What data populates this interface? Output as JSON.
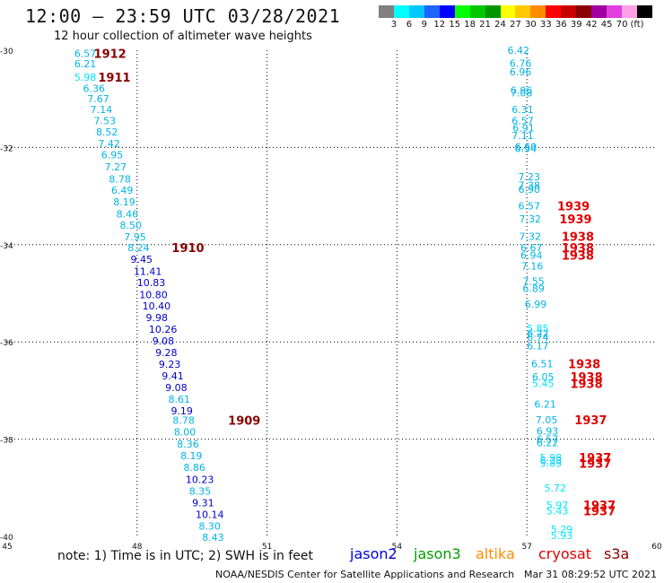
{
  "header": {
    "title": "12:00 – 23:59 UTC 03/28/2021",
    "subtitle": "12 hour collection of altimeter wave heights"
  },
  "colorbar": {
    "colors": [
      "#808080",
      "#00ffff",
      "#00c8ff",
      "#1e64ff",
      "#0000ff",
      "#00ff00",
      "#00c800",
      "#009600",
      "#ffff00",
      "#ffc800",
      "#ff8c00",
      "#ff0000",
      "#c80000",
      "#8b0000",
      "#a000a0",
      "#e040e0",
      "#ffa0e6",
      "#000000"
    ],
    "labels": [
      "3",
      "6",
      "9",
      "12",
      "15",
      "18",
      "21",
      "24",
      "27",
      "30",
      "33",
      "36",
      "39",
      "42",
      "45",
      "70",
      "(ft)"
    ]
  },
  "axes": {
    "lat_ticks": [
      "-30",
      "-32",
      "-34",
      "-36",
      "-38",
      "-40"
    ],
    "lon_ticks": [
      "45",
      "48",
      "51",
      "54",
      "57",
      "60"
    ]
  },
  "tracks": {
    "left": [
      {
        "lat": -30.06,
        "lon": 46.55,
        "v": "6.57",
        "c": "#00b4e6"
      },
      {
        "lat": -30.28,
        "lon": 46.55,
        "v": "6.21",
        "c": "#00b4e6"
      },
      {
        "lat": -30.55,
        "lon": 46.55,
        "v": "5.98",
        "c": "#00e6ff"
      },
      {
        "lat": -30.78,
        "lon": 46.75,
        "v": "6.36",
        "c": "#00b4e6"
      },
      {
        "lat": -31.0,
        "lon": 46.85,
        "v": "7.67",
        "c": "#00b4e6"
      },
      {
        "lat": -31.22,
        "lon": 46.92,
        "v": "7.14",
        "c": "#00b4e6"
      },
      {
        "lat": -31.45,
        "lon": 47.0,
        "v": "7.53",
        "c": "#00b4e6"
      },
      {
        "lat": -31.68,
        "lon": 47.05,
        "v": "8.52",
        "c": "#00b4e6"
      },
      {
        "lat": -31.92,
        "lon": 47.1,
        "v": "7.42",
        "c": "#00b4e6"
      },
      {
        "lat": -32.15,
        "lon": 47.17,
        "v": "6.95",
        "c": "#00b4e6"
      },
      {
        "lat": -32.4,
        "lon": 47.25,
        "v": "7.27",
        "c": "#00b4e6"
      },
      {
        "lat": -32.65,
        "lon": 47.35,
        "v": "8.78",
        "c": "#00b4e6"
      },
      {
        "lat": -32.88,
        "lon": 47.4,
        "v": "6.49",
        "c": "#00b4e6"
      },
      {
        "lat": -33.12,
        "lon": 47.45,
        "v": "8.19",
        "c": "#00b4e6"
      },
      {
        "lat": -33.37,
        "lon": 47.52,
        "v": "8.46",
        "c": "#00b4e6"
      },
      {
        "lat": -33.6,
        "lon": 47.6,
        "v": "8.50",
        "c": "#00b4e6"
      },
      {
        "lat": -33.84,
        "lon": 47.7,
        "v": "7.95",
        "c": "#00b4e6"
      },
      {
        "lat": -34.06,
        "lon": 47.78,
        "v": "8.24",
        "c": "#00b4e6"
      },
      {
        "lat": -34.3,
        "lon": 47.85,
        "v": "9.45",
        "c": "#0000c8"
      },
      {
        "lat": -34.55,
        "lon": 47.92,
        "v": "11.41",
        "c": "#0000c8"
      },
      {
        "lat": -34.78,
        "lon": 48.0,
        "v": "10.83",
        "c": "#0000c8"
      },
      {
        "lat": -35.03,
        "lon": 48.05,
        "v": "10.80",
        "c": "#0000c8"
      },
      {
        "lat": -35.26,
        "lon": 48.12,
        "v": "10.40",
        "c": "#0000c8"
      },
      {
        "lat": -35.5,
        "lon": 48.2,
        "v": "9.98",
        "c": "#0000c8"
      },
      {
        "lat": -35.74,
        "lon": 48.27,
        "v": "10.26",
        "c": "#0000c8"
      },
      {
        "lat": -35.98,
        "lon": 48.35,
        "v": "9.08",
        "c": "#0000c8"
      },
      {
        "lat": -36.22,
        "lon": 48.42,
        "v": "9.28",
        "c": "#0000c8"
      },
      {
        "lat": -36.46,
        "lon": 48.5,
        "v": "9.23",
        "c": "#0000c8"
      },
      {
        "lat": -36.7,
        "lon": 48.57,
        "v": "9.41",
        "c": "#0000c8"
      },
      {
        "lat": -36.94,
        "lon": 48.65,
        "v": "9.08",
        "c": "#0000c8"
      },
      {
        "lat": -37.18,
        "lon": 48.72,
        "v": "8.61",
        "c": "#00b4e6"
      },
      {
        "lat": -37.42,
        "lon": 48.78,
        "v": "9.19",
        "c": "#0000c8"
      },
      {
        "lat": -37.61,
        "lon": 48.82,
        "v": "8.78",
        "c": "#00b4e6"
      },
      {
        "lat": -37.85,
        "lon": 48.85,
        "v": "8.00",
        "c": "#00b4e6"
      },
      {
        "lat": -38.1,
        "lon": 48.92,
        "v": "8.36",
        "c": "#00b4e6"
      },
      {
        "lat": -38.34,
        "lon": 49.0,
        "v": "8.19",
        "c": "#00b4e6"
      },
      {
        "lat": -38.58,
        "lon": 49.07,
        "v": "8.86",
        "c": "#00b4e6"
      },
      {
        "lat": -38.83,
        "lon": 49.12,
        "v": "10.23",
        "c": "#0000c8"
      },
      {
        "lat": -39.07,
        "lon": 49.2,
        "v": "8.35",
        "c": "#00b4e6"
      },
      {
        "lat": -39.31,
        "lon": 49.27,
        "v": "9.31",
        "c": "#0000c8"
      },
      {
        "lat": -39.55,
        "lon": 49.35,
        "v": "10.14",
        "c": "#0000c8"
      },
      {
        "lat": -39.79,
        "lon": 49.42,
        "v": "8.30",
        "c": "#00b4e6"
      },
      {
        "lat": -40.02,
        "lon": 49.5,
        "v": "8.43",
        "c": "#00b4e6"
      }
    ],
    "right": [
      {
        "lat": -30.0,
        "lon": 56.55,
        "v": "6.42",
        "c": "#00b4e6"
      },
      {
        "lat": -30.27,
        "lon": 56.6,
        "v": "6.76",
        "c": "#00b4e6"
      },
      {
        "lat": -30.44,
        "lon": 56.6,
        "v": "6.96",
        "c": "#00b4e6"
      },
      {
        "lat": -30.82,
        "lon": 56.62,
        "v": "6.96",
        "c": "#00b4e6"
      },
      {
        "lat": -30.88,
        "lon": 56.62,
        "v": "7.08",
        "c": "#00b4e6"
      },
      {
        "lat": -31.22,
        "lon": 56.65,
        "v": "6.31",
        "c": "#00b4e6"
      },
      {
        "lat": -31.45,
        "lon": 56.65,
        "v": "6.57",
        "c": "#00b4e6"
      },
      {
        "lat": -31.6,
        "lon": 56.67,
        "v": "6.91",
        "c": "#00b4e6"
      },
      {
        "lat": -31.75,
        "lon": 56.65,
        "v": "7.11",
        "c": "#00b4e6"
      },
      {
        "lat": -31.98,
        "lon": 56.72,
        "v": "6.60",
        "c": "#00b4e6"
      },
      {
        "lat": -32.02,
        "lon": 56.72,
        "v": "6.54",
        "c": "#00b4e6"
      },
      {
        "lat": -32.6,
        "lon": 56.8,
        "v": "7.23",
        "c": "#00b4e6"
      },
      {
        "lat": -32.78,
        "lon": 56.8,
        "v": "7.38",
        "c": "#00b4e6"
      },
      {
        "lat": -32.86,
        "lon": 56.8,
        "v": "6.90",
        "c": "#00b4e6"
      },
      {
        "lat": -33.2,
        "lon": 56.8,
        "v": "6.57",
        "c": "#00b4e6"
      },
      {
        "lat": -33.47,
        "lon": 56.82,
        "v": "7.32",
        "c": "#00b4e6"
      },
      {
        "lat": -33.83,
        "lon": 56.82,
        "v": "7.32",
        "c": "#00b4e6"
      },
      {
        "lat": -34.06,
        "lon": 56.85,
        "v": "6.67",
        "c": "#00b4e6"
      },
      {
        "lat": -34.22,
        "lon": 56.85,
        "v": "6.94",
        "c": "#00b4e6"
      },
      {
        "lat": -34.44,
        "lon": 56.87,
        "v": "7.16",
        "c": "#00b4e6"
      },
      {
        "lat": -34.75,
        "lon": 56.9,
        "v": "7.55",
        "c": "#00b4e6"
      },
      {
        "lat": -34.9,
        "lon": 56.9,
        "v": "6.89",
        "c": "#00b4e6"
      },
      {
        "lat": -35.22,
        "lon": 56.95,
        "v": "6.99",
        "c": "#00b4e6"
      },
      {
        "lat": -35.72,
        "lon": 57.0,
        "v": "5.85",
        "c": "#00e6ff"
      },
      {
        "lat": -35.82,
        "lon": 57.0,
        "v": "6.22",
        "c": "#00b4e6"
      },
      {
        "lat": -35.9,
        "lon": 57.0,
        "v": "6.74",
        "c": "#00b4e6"
      },
      {
        "lat": -36.08,
        "lon": 57.0,
        "v": "6.17",
        "c": "#00b4e6"
      },
      {
        "lat": -36.45,
        "lon": 57.1,
        "v": "6.51",
        "c": "#00b4e6"
      },
      {
        "lat": -36.72,
        "lon": 57.12,
        "v": "6.05",
        "c": "#00b4e6"
      },
      {
        "lat": -36.85,
        "lon": 57.12,
        "v": "5.45",
        "c": "#00e6ff"
      },
      {
        "lat": -37.28,
        "lon": 57.17,
        "v": "6.21",
        "c": "#00b4e6"
      },
      {
        "lat": -37.6,
        "lon": 57.2,
        "v": "7.05",
        "c": "#00b4e6"
      },
      {
        "lat": -37.83,
        "lon": 57.22,
        "v": "6.93",
        "c": "#00b4e6"
      },
      {
        "lat": -38.0,
        "lon": 57.22,
        "v": "6.57",
        "c": "#00b4e6"
      },
      {
        "lat": -38.07,
        "lon": 57.22,
        "v": "6.22",
        "c": "#00b4e6"
      },
      {
        "lat": -38.38,
        "lon": 57.3,
        "v": "5.98",
        "c": "#00e6ff"
      },
      {
        "lat": -38.44,
        "lon": 57.3,
        "v": "6.33",
        "c": "#00b4e6"
      },
      {
        "lat": -38.5,
        "lon": 57.3,
        "v": "5.85",
        "c": "#00e6ff"
      },
      {
        "lat": -39.0,
        "lon": 57.4,
        "v": "5.72",
        "c": "#00e6ff"
      },
      {
        "lat": -39.35,
        "lon": 57.45,
        "v": "5.97",
        "c": "#00e6ff"
      },
      {
        "lat": -39.47,
        "lon": 57.45,
        "v": "5.43",
        "c": "#00e6ff"
      },
      {
        "lat": -39.85,
        "lon": 57.55,
        "v": "5.29",
        "c": "#00e6ff"
      },
      {
        "lat": -39.98,
        "lon": 57.55,
        "v": "5.93",
        "c": "#00e6ff"
      }
    ]
  },
  "timestamps": [
    {
      "lat": -30.06,
      "lon": 47.0,
      "v": "1912",
      "c": "#8b0000"
    },
    {
      "lat": -30.55,
      "lon": 47.1,
      "v": "1911",
      "c": "#8b0000"
    },
    {
      "lat": -34.06,
      "lon": 48.8,
      "v": "1910",
      "c": "#8b0000"
    },
    {
      "lat": -37.61,
      "lon": 50.1,
      "v": "1909",
      "c": "#8b0000"
    },
    {
      "lat": -33.2,
      "lon": 57.7,
      "v": "1939",
      "c": "#e00000"
    },
    {
      "lat": -33.47,
      "lon": 57.75,
      "v": "1939",
      "c": "#e00000"
    },
    {
      "lat": -33.83,
      "lon": 57.8,
      "v": "1938",
      "c": "#e00000"
    },
    {
      "lat": -34.06,
      "lon": 57.8,
      "v": "1938",
      "c": "#e00000"
    },
    {
      "lat": -34.22,
      "lon": 57.8,
      "v": "1938",
      "c": "#e00000"
    },
    {
      "lat": -36.45,
      "lon": 57.95,
      "v": "1938",
      "c": "#e00000"
    },
    {
      "lat": -36.72,
      "lon": 58.0,
      "v": "1938",
      "c": "#e00000"
    },
    {
      "lat": -36.85,
      "lon": 58.0,
      "v": "1938",
      "c": "#e00000"
    },
    {
      "lat": -37.6,
      "lon": 58.1,
      "v": "1937",
      "c": "#e00000"
    },
    {
      "lat": -38.38,
      "lon": 58.2,
      "v": "1937",
      "c": "#e00000"
    },
    {
      "lat": -38.5,
      "lon": 58.2,
      "v": "1937",
      "c": "#e00000"
    },
    {
      "lat": -39.35,
      "lon": 58.3,
      "v": "1937",
      "c": "#e00000"
    },
    {
      "lat": -39.47,
      "lon": 58.3,
      "v": "1937",
      "c": "#e00000"
    }
  ],
  "footer": {
    "note": "note:  1) Time is in UTC;  2) SWH is in feet",
    "satellites": [
      {
        "name": "jason2",
        "color": "#0000e0"
      },
      {
        "name": "jason3",
        "color": "#00a000"
      },
      {
        "name": "altika",
        "color": "#ff8c00"
      },
      {
        "name": "cryosat",
        "color": "#e00000"
      },
      {
        "name": "s3a",
        "color": "#8b0000"
      }
    ],
    "credit": "NOAA/NESDIS Center for Satellite Applications and Research",
    "timestamp": "Mar 31 08:29:52 UTC 2021"
  }
}
